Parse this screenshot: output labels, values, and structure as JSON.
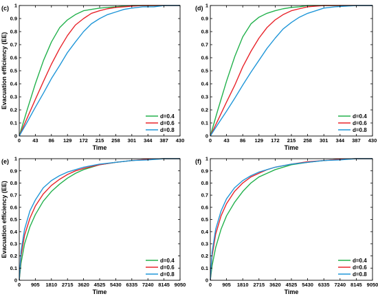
{
  "chart_data": [
    {
      "type": "line",
      "panel": "(c)",
      "xlabel": "Time",
      "ylabel": "Evacuation efficiency (EE)",
      "xlim": [
        0,
        430
      ],
      "ylim": [
        0,
        1
      ],
      "xticks": [
        0,
        43,
        86,
        129,
        172,
        215,
        258,
        301,
        344,
        387,
        430
      ],
      "yticks": [
        0,
        0.1,
        0.2,
        0.3,
        0.4,
        0.5,
        0.6,
        0.7,
        0.8,
        0.9,
        1
      ],
      "grid": false,
      "legend_position": "bottom-right",
      "series": [
        {
          "name": "d=0.4",
          "color": "#22b14c",
          "x": [
            0,
            20,
            43,
            65,
            86,
            108,
            129,
            150,
            172,
            193,
            215,
            236,
            258,
            280,
            301,
            330,
            360,
            430
          ],
          "y": [
            0,
            0.19,
            0.4,
            0.58,
            0.72,
            0.83,
            0.89,
            0.93,
            0.96,
            0.97,
            0.98,
            0.985,
            0.99,
            0.995,
            1,
            1,
            1,
            1
          ]
        },
        {
          "name": "d=0.6",
          "color": "#e8232a",
          "x": [
            0,
            20,
            43,
            65,
            86,
            108,
            129,
            150,
            172,
            193,
            215,
            236,
            258,
            280,
            301,
            330,
            360,
            430
          ],
          "y": [
            0,
            0.13,
            0.28,
            0.42,
            0.55,
            0.67,
            0.77,
            0.85,
            0.9,
            0.94,
            0.96,
            0.975,
            0.985,
            0.99,
            0.995,
            1,
            1,
            1
          ]
        },
        {
          "name": "d=0.8",
          "color": "#1f96d8",
          "x": [
            0,
            20,
            43,
            65,
            86,
            108,
            129,
            150,
            172,
            193,
            215,
            236,
            258,
            280,
            301,
            330,
            360,
            387,
            430
          ],
          "y": [
            0,
            0.1,
            0.22,
            0.33,
            0.44,
            0.54,
            0.64,
            0.72,
            0.8,
            0.86,
            0.9,
            0.93,
            0.95,
            0.97,
            0.98,
            0.99,
            0.99,
            1,
            1
          ]
        }
      ]
    },
    {
      "type": "line",
      "panel": "(d)",
      "xlabel": "Time",
      "ylabel": "",
      "xlim": [
        0,
        430
      ],
      "ylim": [
        0,
        1
      ],
      "xticks": [
        0,
        43,
        86,
        129,
        172,
        215,
        258,
        301,
        344,
        387,
        430
      ],
      "yticks": [
        0,
        0.1,
        0.2,
        0.3,
        0.4,
        0.5,
        0.6,
        0.7,
        0.8,
        0.9,
        1
      ],
      "grid": false,
      "legend_position": "bottom-right",
      "series": [
        {
          "name": "d=0.4",
          "color": "#22b14c",
          "x": [
            0,
            20,
            43,
            65,
            86,
            108,
            129,
            150,
            172,
            193,
            215,
            236,
            258,
            280,
            301,
            330,
            430
          ],
          "y": [
            0,
            0.2,
            0.42,
            0.61,
            0.76,
            0.86,
            0.91,
            0.94,
            0.96,
            0.975,
            0.985,
            0.99,
            1,
            1,
            1,
            1,
            1
          ]
        },
        {
          "name": "d=0.6",
          "color": "#e8232a",
          "x": [
            0,
            20,
            43,
            65,
            86,
            108,
            129,
            150,
            172,
            193,
            215,
            236,
            258,
            280,
            301,
            330,
            430
          ],
          "y": [
            0,
            0.12,
            0.26,
            0.39,
            0.53,
            0.65,
            0.75,
            0.83,
            0.89,
            0.93,
            0.96,
            0.975,
            0.99,
            0.995,
            1,
            1,
            1
          ]
        },
        {
          "name": "d=0.8",
          "color": "#1f96d8",
          "x": [
            0,
            20,
            43,
            65,
            86,
            108,
            129,
            150,
            172,
            193,
            215,
            236,
            258,
            280,
            301,
            330,
            360,
            387,
            430
          ],
          "y": [
            0,
            0.09,
            0.19,
            0.29,
            0.39,
            0.49,
            0.58,
            0.67,
            0.75,
            0.82,
            0.87,
            0.91,
            0.94,
            0.96,
            0.98,
            0.99,
            0.995,
            1,
            1
          ]
        }
      ]
    },
    {
      "type": "line",
      "panel": "(e)",
      "xlabel": "Time",
      "ylabel": "Evacuation efficiency (EE)",
      "xlim": [
        0,
        9050
      ],
      "ylim": [
        0,
        1
      ],
      "xticks": [
        0,
        905,
        1810,
        2715,
        3620,
        4525,
        5430,
        6335,
        7240,
        8145,
        9050
      ],
      "yticks": [
        0,
        0.1,
        0.2,
        0.3,
        0.4,
        0.5,
        0.6,
        0.7,
        0.8,
        0.9,
        1
      ],
      "grid": false,
      "legend_position": "bottom-right",
      "series": [
        {
          "name": "d=0.4",
          "color": "#22b14c",
          "x": [
            0,
            100,
            300,
            600,
            905,
            1350,
            1810,
            2265,
            2715,
            3170,
            3620,
            4525,
            5430,
            6335,
            7240,
            8145,
            9050
          ],
          "y": [
            0,
            0.14,
            0.3,
            0.44,
            0.54,
            0.65,
            0.73,
            0.79,
            0.84,
            0.88,
            0.91,
            0.95,
            0.97,
            0.985,
            0.995,
            1,
            1
          ]
        },
        {
          "name": "d=0.6",
          "color": "#e8232a",
          "x": [
            0,
            100,
            300,
            600,
            905,
            1350,
            1810,
            2265,
            2715,
            3170,
            3620,
            4525,
            5430,
            6335,
            7240,
            8145,
            9050
          ],
          "y": [
            0,
            0.2,
            0.37,
            0.51,
            0.61,
            0.71,
            0.78,
            0.83,
            0.87,
            0.9,
            0.92,
            0.95,
            0.97,
            0.985,
            0.995,
            1,
            1
          ]
        },
        {
          "name": "d=0.8",
          "color": "#1f96d8",
          "x": [
            0,
            100,
            300,
            600,
            905,
            1350,
            1810,
            2265,
            2715,
            3170,
            3620,
            4525,
            5430,
            6335,
            7240,
            8145,
            9050
          ],
          "y": [
            0,
            0.24,
            0.42,
            0.57,
            0.66,
            0.76,
            0.82,
            0.86,
            0.89,
            0.91,
            0.93,
            0.955,
            0.97,
            0.985,
            0.99,
            1,
            1
          ]
        }
      ]
    },
    {
      "type": "line",
      "panel": "(f)",
      "xlabel": "Time",
      "ylabel": "",
      "xlim": [
        0,
        9050
      ],
      "ylim": [
        0,
        1
      ],
      "xticks": [
        0,
        905,
        1810,
        2715,
        3620,
        4525,
        5430,
        6335,
        7240,
        8145,
        9050
      ],
      "yticks": [
        0,
        0.1,
        0.2,
        0.3,
        0.4,
        0.5,
        0.6,
        0.7,
        0.8,
        0.9,
        1
      ],
      "grid": false,
      "legend_position": "bottom-right",
      "series": [
        {
          "name": "d=0.4",
          "color": "#22b14c",
          "x": [
            0,
            100,
            300,
            600,
            905,
            1350,
            1810,
            2265,
            2715,
            3170,
            3620,
            4525,
            5430,
            6335,
            7240,
            8145,
            9050
          ],
          "y": [
            0,
            0.12,
            0.27,
            0.42,
            0.53,
            0.64,
            0.73,
            0.8,
            0.85,
            0.88,
            0.91,
            0.95,
            0.97,
            0.985,
            0.995,
            1,
            1
          ]
        },
        {
          "name": "d=0.6",
          "color": "#e8232a",
          "x": [
            0,
            100,
            300,
            600,
            905,
            1350,
            1810,
            2265,
            2715,
            3170,
            3620,
            4525,
            5430,
            6335,
            7240,
            8145,
            9050
          ],
          "y": [
            0,
            0.2,
            0.38,
            0.53,
            0.63,
            0.73,
            0.8,
            0.85,
            0.88,
            0.91,
            0.93,
            0.955,
            0.975,
            0.985,
            0.995,
            1,
            1
          ]
        },
        {
          "name": "d=0.8",
          "color": "#1f96d8",
          "x": [
            0,
            100,
            300,
            600,
            905,
            1350,
            1810,
            2265,
            2715,
            3170,
            3620,
            4525,
            5430,
            6335,
            7240,
            8145,
            9050
          ],
          "y": [
            0,
            0.23,
            0.42,
            0.57,
            0.67,
            0.76,
            0.82,
            0.86,
            0.89,
            0.91,
            0.93,
            0.955,
            0.97,
            0.985,
            0.99,
            1,
            1
          ]
        }
      ]
    }
  ]
}
